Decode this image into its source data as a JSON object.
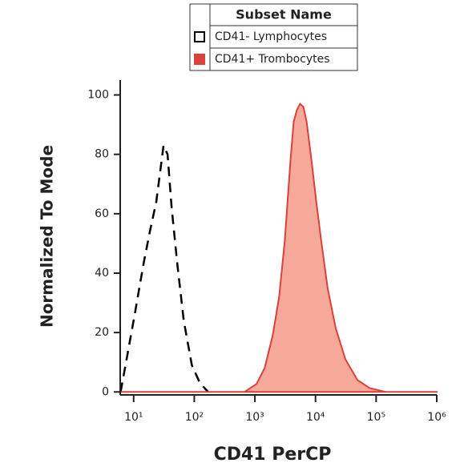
{
  "chart_data": {
    "type": "line",
    "xlabel": "CD41 PerCP",
    "ylabel": "Normalized To Mode",
    "legend_title": "Subset Name",
    "xscale": "log",
    "xlim": [
      6,
      1000000
    ],
    "ylim": [
      -1,
      105
    ],
    "xticks": [
      {
        "value": 10,
        "label": "10¹"
      },
      {
        "value": 100,
        "label": "10²"
      },
      {
        "value": 1000,
        "label": "10³"
      },
      {
        "value": 10000,
        "label": "10⁴"
      },
      {
        "value": 100000,
        "label": "10⁵"
      },
      {
        "value": 1000000,
        "label": "10⁶"
      }
    ],
    "yticks": [
      0,
      20,
      40,
      60,
      80,
      100
    ],
    "series": [
      {
        "name": "CD41- Lymphocytes",
        "color": "#000000",
        "dashed": true,
        "fill": false,
        "x": [
          6.1,
          7.4,
          10.6,
          14.5,
          18.5,
          23.6,
          31.1,
          36.3,
          42.4,
          52.5,
          67.1,
          91.2,
          124,
          169
        ],
        "values": [
          0,
          9.4,
          27,
          43,
          54,
          64,
          83,
          80,
          62,
          43,
          24,
          9,
          3,
          0
        ]
      },
      {
        "name": "CD41+ Trombocytes",
        "color": "#d9413a",
        "fill_color": "#f6a99a",
        "dashed": false,
        "fill": true,
        "x": [
          6,
          671,
          1064,
          1445,
          1965,
          2512,
          3112,
          3862,
          4365,
          4935,
          5580,
          6310,
          7130,
          8580,
          10310,
          12400,
          15850,
          21540,
          31100,
          49300,
          78100,
          144500,
          1000000
        ],
        "values": [
          0,
          0,
          2.7,
          8,
          19,
          32,
          51,
          78,
          91,
          95,
          97,
          96,
          91,
          78,
          64,
          51,
          35,
          21.5,
          11,
          4,
          1.3,
          0,
          0
        ]
      }
    ]
  }
}
